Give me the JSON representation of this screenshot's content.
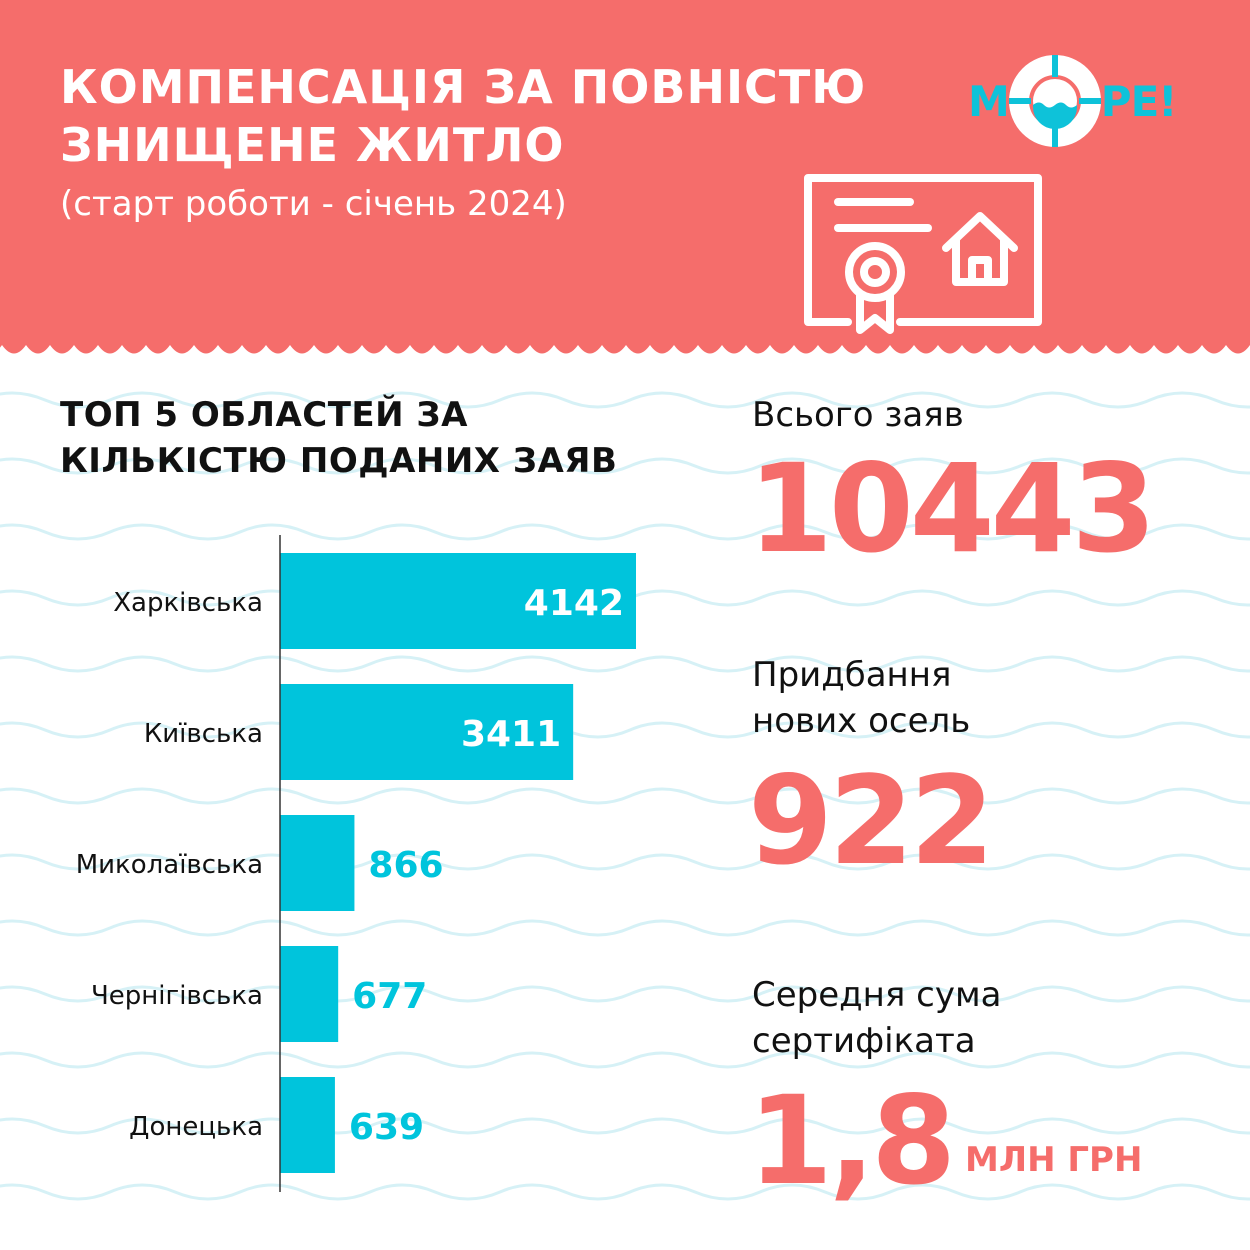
{
  "header": {
    "title_line1": "КОМПЕНСАЦІЯ ЗА ПОВНІСТЮ",
    "title_line2": "ЗНИЩЕНЕ ЖИТЛО",
    "subtitle": "(старт роботи - січень 2024)",
    "logo_left": "М",
    "logo_right": "РЕ!"
  },
  "colors": {
    "header_bg": "#f56d6b",
    "bar": "#00c4dc",
    "accent_number": "#f56d6b",
    "wave": "#d6f1f6",
    "text": "#111111"
  },
  "icons": {
    "certificate": "certificate-house-icon",
    "logo_ring": "lifebuoy-icon"
  },
  "chart_data": {
    "type": "bar",
    "orientation": "horizontal",
    "title_line1": "ТОП 5 ОБЛАСТЕЙ ЗА",
    "title_line2": "КІЛЬКІСТЮ ПОДАНИХ ЗАЯВ",
    "categories": [
      "Харківська",
      "Київська",
      "Миколаївська",
      "Чернігівська",
      "Донецька"
    ],
    "values": [
      4142,
      3411,
      866,
      677,
      639
    ],
    "value_labels": [
      "4142",
      "3411",
      "866",
      "677",
      "639"
    ],
    "xlim": [
      0,
      4142
    ],
    "grid": false,
    "legend": "none"
  },
  "stats": {
    "total": {
      "label": "Всього заяв",
      "value": "10443"
    },
    "purchased": {
      "label_line1": "Придбання",
      "label_line2": "нових осель",
      "value": "922"
    },
    "average": {
      "label_line1": "Середня сума",
      "label_line2": "сертифіката",
      "value": "1,8",
      "unit": "МЛН ГРН"
    }
  }
}
